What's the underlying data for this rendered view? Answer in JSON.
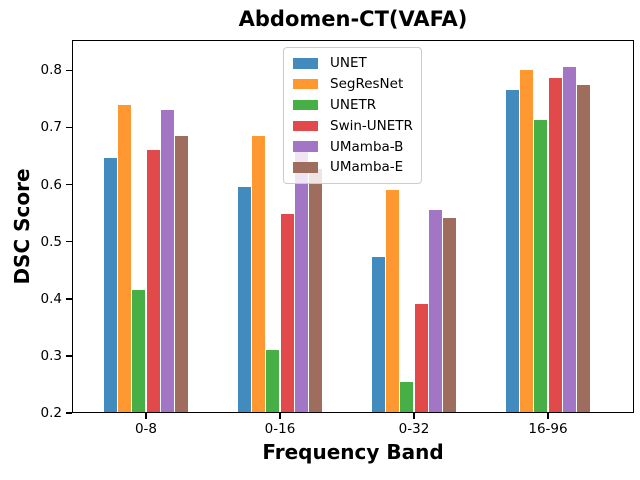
{
  "title": "Abdomen-CT(VAFA)",
  "chart_data": {
    "type": "bar",
    "title": "Abdomen-CT(VAFA)",
    "xlabel": "Frequency Band",
    "ylabel": "DSC Score",
    "categories": [
      "0-8",
      "0-16",
      "0-32",
      "16-96"
    ],
    "series": [
      {
        "name": "UNET",
        "color": "#418bbf",
        "values": [
          0.646,
          0.595,
          0.473,
          0.765
        ]
      },
      {
        "name": "SegResNet",
        "color": "#ff9830",
        "values": [
          0.739,
          0.685,
          0.591,
          0.801
        ]
      },
      {
        "name": "UNETR",
        "color": "#46af46",
        "values": [
          0.416,
          0.31,
          0.254,
          0.713
        ]
      },
      {
        "name": "Swin-UNETR",
        "color": "#e2494a",
        "values": [
          0.66,
          0.548,
          0.39,
          0.787
        ]
      },
      {
        "name": "UMamba-B",
        "color": "#a276c5",
        "values": [
          0.731,
          0.663,
          0.555,
          0.806
        ]
      },
      {
        "name": "UMamba-E",
        "color": "#9e6d5e",
        "values": [
          0.685,
          0.627,
          0.542,
          0.774
        ]
      }
    ],
    "ylim": [
      0.2,
      0.853
    ],
    "yticks": [
      0.2,
      0.3,
      0.4,
      0.5,
      0.6,
      0.7,
      0.8
    ],
    "legend_position": "upper center",
    "grid": false,
    "axis_color": "#000000",
    "background_color": "#ffffff"
  }
}
